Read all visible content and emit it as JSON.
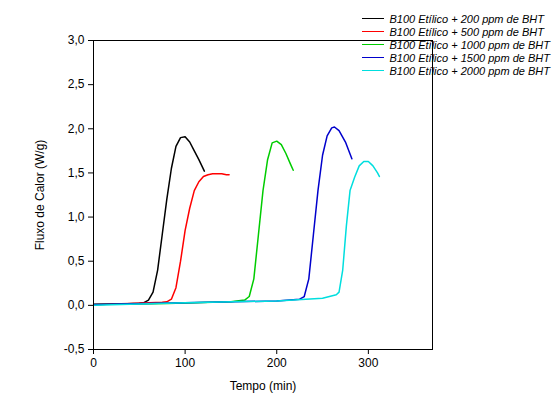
{
  "chart_data": {
    "type": "line",
    "xlabel": "Tempo (min)",
    "ylabel": "Fluxo de Calor (W/g)",
    "xlim": [
      0,
      370
    ],
    "xticks": [
      0,
      100,
      200,
      300
    ],
    "ylim": [
      -0.5,
      3.0
    ],
    "yticks": [
      {
        "value": -0.5,
        "label": "-0,5"
      },
      {
        "value": 0,
        "label": "0,0"
      },
      {
        "value": 0.5,
        "label": "0,5"
      },
      {
        "value": 1,
        "label": "1,0"
      },
      {
        "value": 1.5,
        "label": "1,5"
      },
      {
        "value": 2,
        "label": "2,0"
      },
      {
        "value": 2.5,
        "label": "2,5"
      },
      {
        "value": 3,
        "label": "3,0"
      }
    ],
    "grid": false,
    "legend": "top-right",
    "series": [
      {
        "name": "B100 Etílico + 200 ppm de BHT",
        "color": "#000000",
        "x": [
          0,
          30,
          50,
          55,
          60,
          65,
          70,
          75,
          80,
          85,
          90,
          95,
          100,
          105,
          110,
          115,
          121
        ],
        "values": [
          0.01,
          0.015,
          0.025,
          0.03,
          0.06,
          0.15,
          0.4,
          0.8,
          1.2,
          1.55,
          1.8,
          1.9,
          1.91,
          1.85,
          1.75,
          1.65,
          1.52
        ]
      },
      {
        "name": "B100 Etílico + 500 ppm de BHT",
        "color": "#ff0000",
        "x": [
          0,
          40,
          75,
          80,
          85,
          90,
          95,
          100,
          105,
          110,
          115,
          120,
          125,
          130,
          140,
          145,
          148
        ],
        "values": [
          0.01,
          0.02,
          0.035,
          0.04,
          0.07,
          0.2,
          0.5,
          0.85,
          1.1,
          1.3,
          1.4,
          1.46,
          1.48,
          1.49,
          1.49,
          1.48,
          1.48
        ]
      },
      {
        "name": "B100 Etílico + 1000 ppm de BHT",
        "color": "#00cc00",
        "x": [
          0,
          80,
          150,
          165,
          170,
          175,
          180,
          185,
          190,
          195,
          200,
          205,
          210,
          215,
          218
        ],
        "values": [
          0.01,
          0.02,
          0.04,
          0.06,
          0.1,
          0.3,
          0.8,
          1.3,
          1.65,
          1.84,
          1.86,
          1.82,
          1.72,
          1.6,
          1.53
        ]
      },
      {
        "name": "B100 Etílico + 1500 ppm de BHT",
        "color": "#0000cc",
        "x": [
          0,
          100,
          200,
          225,
          230,
          235,
          240,
          245,
          250,
          255,
          260,
          263,
          268,
          275,
          282
        ],
        "values": [
          0.01,
          0.03,
          0.05,
          0.07,
          0.1,
          0.3,
          0.8,
          1.3,
          1.7,
          1.92,
          2.01,
          2.02,
          1.98,
          1.85,
          1.66
        ]
      },
      {
        "name": "B100 Etílico + 2000 ppm de BHT",
        "color": "#00dede",
        "x": [
          0,
          100,
          200,
          250,
          265,
          268,
          272,
          276,
          280,
          285,
          290,
          295,
          300,
          305,
          310,
          312
        ],
        "values": [
          0.0,
          0.03,
          0.05,
          0.08,
          0.12,
          0.15,
          0.4,
          0.9,
          1.3,
          1.45,
          1.58,
          1.63,
          1.63,
          1.58,
          1.5,
          1.46
        ]
      }
    ]
  }
}
